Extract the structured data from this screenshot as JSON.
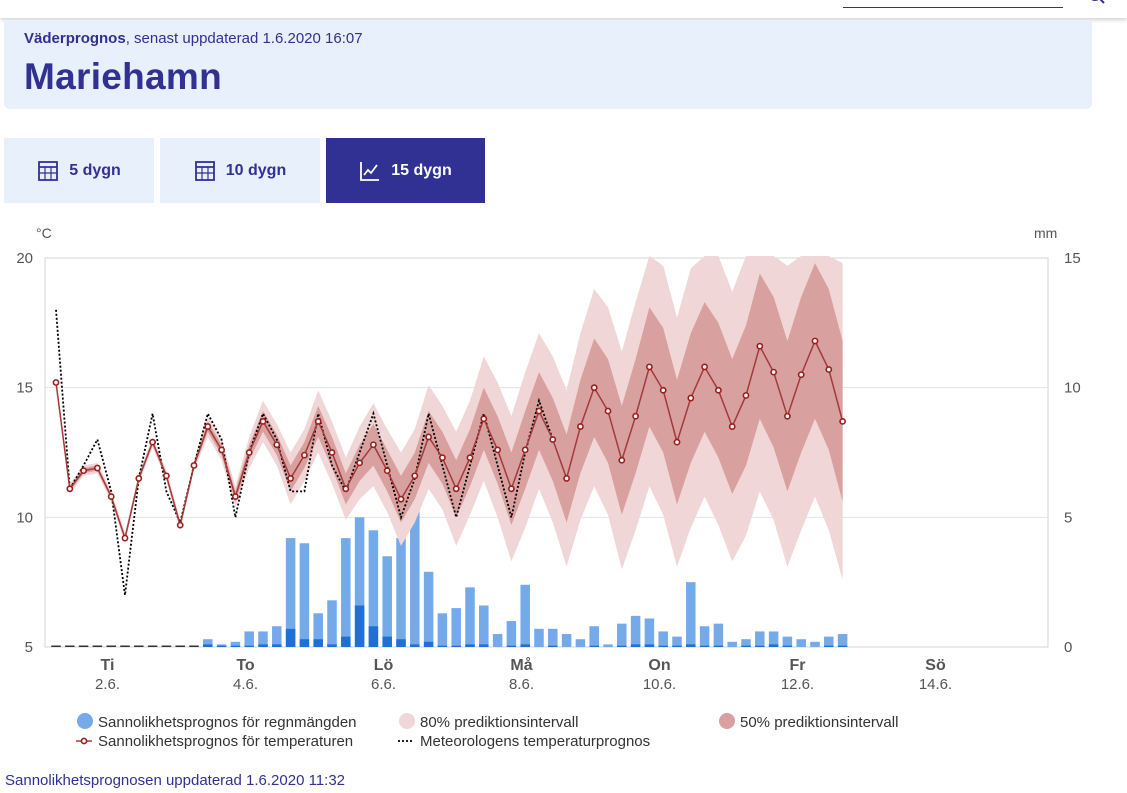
{
  "header": {
    "brand": "Väderprognos",
    "updated": ", senast uppdaterad 1.6.2020 16:07",
    "location": "Mariehamn"
  },
  "tabs": [
    {
      "label": "5 dygn",
      "icon": "calendar-grid-icon",
      "active": false
    },
    {
      "label": "10 dygn",
      "icon": "calendar-grid-icon",
      "active": false
    },
    {
      "label": "15 dygn",
      "icon": "line-chart-icon",
      "active": true
    }
  ],
  "colors": {
    "brand": "#303193",
    "header_bg": "#e8f0fb",
    "temp_line": "#a33a3a",
    "band80": "#f0d6d6",
    "band50": "#d9a0a0",
    "rain_light": "#74a9ea",
    "rain_dark": "#1f6fd6"
  },
  "chart_data": {
    "type": "line",
    "left_axis": {
      "unit": "°C",
      "ticks": [
        5,
        10,
        15,
        20
      ],
      "range": [
        5,
        20
      ]
    },
    "right_axis": {
      "unit": "mm",
      "ticks": [
        0,
        5,
        10,
        15
      ],
      "range": [
        0,
        15
      ]
    },
    "x_labels": [
      {
        "day": "Ti",
        "date": "2.6."
      },
      {
        "day": "To",
        "date": "4.6."
      },
      {
        "day": "Lö",
        "date": "6.6."
      },
      {
        "day": "Må",
        "date": "8.6."
      },
      {
        "day": "On",
        "date": "10.6."
      },
      {
        "day": "Fr",
        "date": "12.6."
      },
      {
        "day": "Sö",
        "date": "14.6."
      }
    ],
    "temperature": [
      15.2,
      11.1,
      11.8,
      11.9,
      10.8,
      9.2,
      11.5,
      12.9,
      11.6,
      9.7,
      12.0,
      13.5,
      12.6,
      10.8,
      12.5,
      13.7,
      12.8,
      11.5,
      12.4,
      13.7,
      12.5,
      11.1,
      12.1,
      12.8,
      11.8,
      10.7,
      11.6,
      13.1,
      12.3,
      11.1,
      12.3,
      13.8,
      12.6,
      11.1,
      12.6,
      14.1,
      13.0,
      11.5,
      13.5,
      15.0,
      14.1,
      12.2,
      13.9,
      15.8,
      14.9,
      12.9,
      14.6,
      15.8,
      14.9,
      13.5,
      14.7,
      16.6,
      15.6,
      13.9,
      15.5,
      16.8,
      15.7,
      13.7
    ],
    "band50": {
      "low": [
        15.1,
        11.0,
        11.7,
        11.8,
        10.7,
        9.1,
        11.4,
        12.8,
        11.5,
        9.6,
        11.9,
        13.3,
        12.4,
        10.6,
        12.2,
        13.3,
        12.4,
        11.0,
        11.9,
        13.1,
        11.9,
        10.5,
        11.4,
        12.0,
        11.0,
        9.8,
        10.7,
        12.1,
        11.3,
        10.0,
        11.2,
        12.6,
        11.3,
        9.7,
        11.1,
        12.6,
        11.4,
        9.8,
        11.7,
        13.1,
        12.1,
        10.1,
        11.7,
        13.5,
        12.5,
        10.5,
        12.1,
        13.3,
        12.3,
        10.9,
        12.0,
        13.8,
        12.7,
        11.0,
        12.5,
        13.8,
        12.6,
        10.6
      ],
      "high": [
        15.3,
        11.2,
        11.9,
        12.0,
        10.9,
        9.3,
        11.6,
        13.0,
        11.7,
        9.8,
        12.1,
        13.7,
        12.8,
        11.0,
        12.8,
        14.1,
        13.2,
        12.0,
        12.9,
        14.3,
        13.1,
        11.7,
        12.8,
        13.6,
        12.6,
        11.6,
        12.5,
        14.1,
        13.3,
        12.2,
        13.4,
        15.0,
        13.9,
        12.5,
        14.1,
        15.6,
        14.6,
        13.2,
        15.3,
        16.9,
        16.1,
        14.3,
        16.1,
        18.1,
        17.3,
        15.3,
        17.1,
        18.3,
        17.5,
        16.1,
        17.4,
        19.4,
        18.5,
        16.8,
        18.5,
        19.8,
        18.8,
        16.8
      ]
    },
    "band80": {
      "low": [
        15.0,
        10.9,
        11.6,
        11.7,
        10.6,
        9.0,
        11.3,
        12.7,
        11.4,
        9.5,
        11.8,
        13.1,
        12.2,
        10.4,
        11.9,
        12.9,
        12.0,
        10.5,
        11.4,
        12.5,
        11.3,
        9.9,
        10.7,
        11.2,
        10.2,
        8.9,
        9.8,
        11.1,
        10.3,
        8.9,
        10.1,
        11.4,
        10.0,
        8.3,
        9.6,
        11.1,
        9.8,
        8.1,
        9.9,
        11.2,
        10.1,
        8.0,
        9.5,
        11.2,
        10.1,
        8.1,
        9.6,
        10.8,
        9.7,
        8.3,
        9.3,
        11.0,
        9.9,
        8.1,
        9.5,
        10.8,
        9.5,
        7.6
      ],
      "high": [
        15.4,
        11.3,
        12.0,
        12.1,
        11.0,
        9.4,
        11.7,
        13.1,
        11.8,
        9.9,
        12.2,
        13.9,
        13.0,
        11.2,
        13.1,
        14.5,
        13.6,
        12.5,
        13.4,
        14.9,
        13.7,
        12.3,
        13.5,
        14.4,
        13.4,
        12.5,
        13.4,
        15.1,
        14.3,
        13.3,
        14.5,
        16.2,
        15.2,
        13.9,
        15.6,
        17.1,
        16.2,
        14.9,
        17.1,
        18.8,
        18.1,
        16.4,
        18.3,
        20.4,
        19.7,
        17.7,
        19.6,
        20.8,
        20.1,
        18.7,
        20.1,
        22.2,
        21.3,
        19.7,
        21.5,
        22.8,
        21.9,
        19.8
      ]
    },
    "meteorologist": [
      18.0,
      11.1,
      12.0,
      13.0,
      11.0,
      7.0,
      11.5,
      14.0,
      11.0,
      9.8,
      12.0,
      14.0,
      13.0,
      10.0,
      12.5,
      14.0,
      13.0,
      11.0,
      11.0,
      14.0,
      12.0,
      11.0,
      12.5,
      14.0,
      12.0,
      10.0,
      11.5,
      14.0,
      12.0,
      10.0,
      12.0,
      14.0,
      12.0,
      10.0,
      12.5,
      14.5,
      13.0
    ],
    "rain_total_mm": [
      0.05,
      0.05,
      0.05,
      0.05,
      0.05,
      0.05,
      0.05,
      0.05,
      0.05,
      0.05,
      0.05,
      0.3,
      0.1,
      0.2,
      0.6,
      0.6,
      0.8,
      4.2,
      4.0,
      1.3,
      1.8,
      4.2,
      5.0,
      4.5,
      3.5,
      4.2,
      5.7,
      2.9,
      1.3,
      1.5,
      2.3,
      1.6,
      0.5,
      1.0,
      2.4,
      0.7,
      0.7,
      0.5,
      0.3,
      0.8,
      0.1,
      0.9,
      1.2,
      1.1,
      0.6,
      0.4,
      2.5,
      0.8,
      0.9,
      0.2,
      0.3,
      0.6,
      0.6,
      0.4,
      0.3,
      0.2,
      0.4,
      0.5
    ],
    "rain_likely_mm": [
      0,
      0,
      0,
      0,
      0,
      0,
      0,
      0,
      0,
      0,
      0,
      0.1,
      0.05,
      0.05,
      0.05,
      0.1,
      0.1,
      0.7,
      0.3,
      0.3,
      0.1,
      0.4,
      1.6,
      0.8,
      0.4,
      0.3,
      0.1,
      0.2,
      0.05,
      0.05,
      0.1,
      0.1,
      0,
      0.05,
      0.1,
      0,
      0.05,
      0,
      0,
      0.05,
      0,
      0.05,
      0.1,
      0.1,
      0.05,
      0.05,
      0.1,
      0.05,
      0.05,
      0,
      0.05,
      0.05,
      0.1,
      0.05,
      0,
      0,
      0.05,
      0.05
    ],
    "legend": [
      {
        "label": "Sannolikhetsprognos för regnmängden",
        "symbol": "circle",
        "color": "#74a9ea"
      },
      {
        "label": "80% prediktionsintervall",
        "symbol": "circle",
        "color": "#f0d6d6"
      },
      {
        "label": "50% prediktionsintervall",
        "symbol": "circle",
        "color": "#d9a0a0"
      },
      {
        "label": "Sannolikhetsprognos för temperaturen",
        "symbol": "line-marker",
        "color": "#a33a3a"
      },
      {
        "label": "Meteorologens temperaturprognos",
        "symbol": "dotted",
        "color": "#000000"
      }
    ]
  },
  "footer": {
    "text": "Sannolikhetsprognosen uppdaterad 1.6.2020 11:32"
  }
}
